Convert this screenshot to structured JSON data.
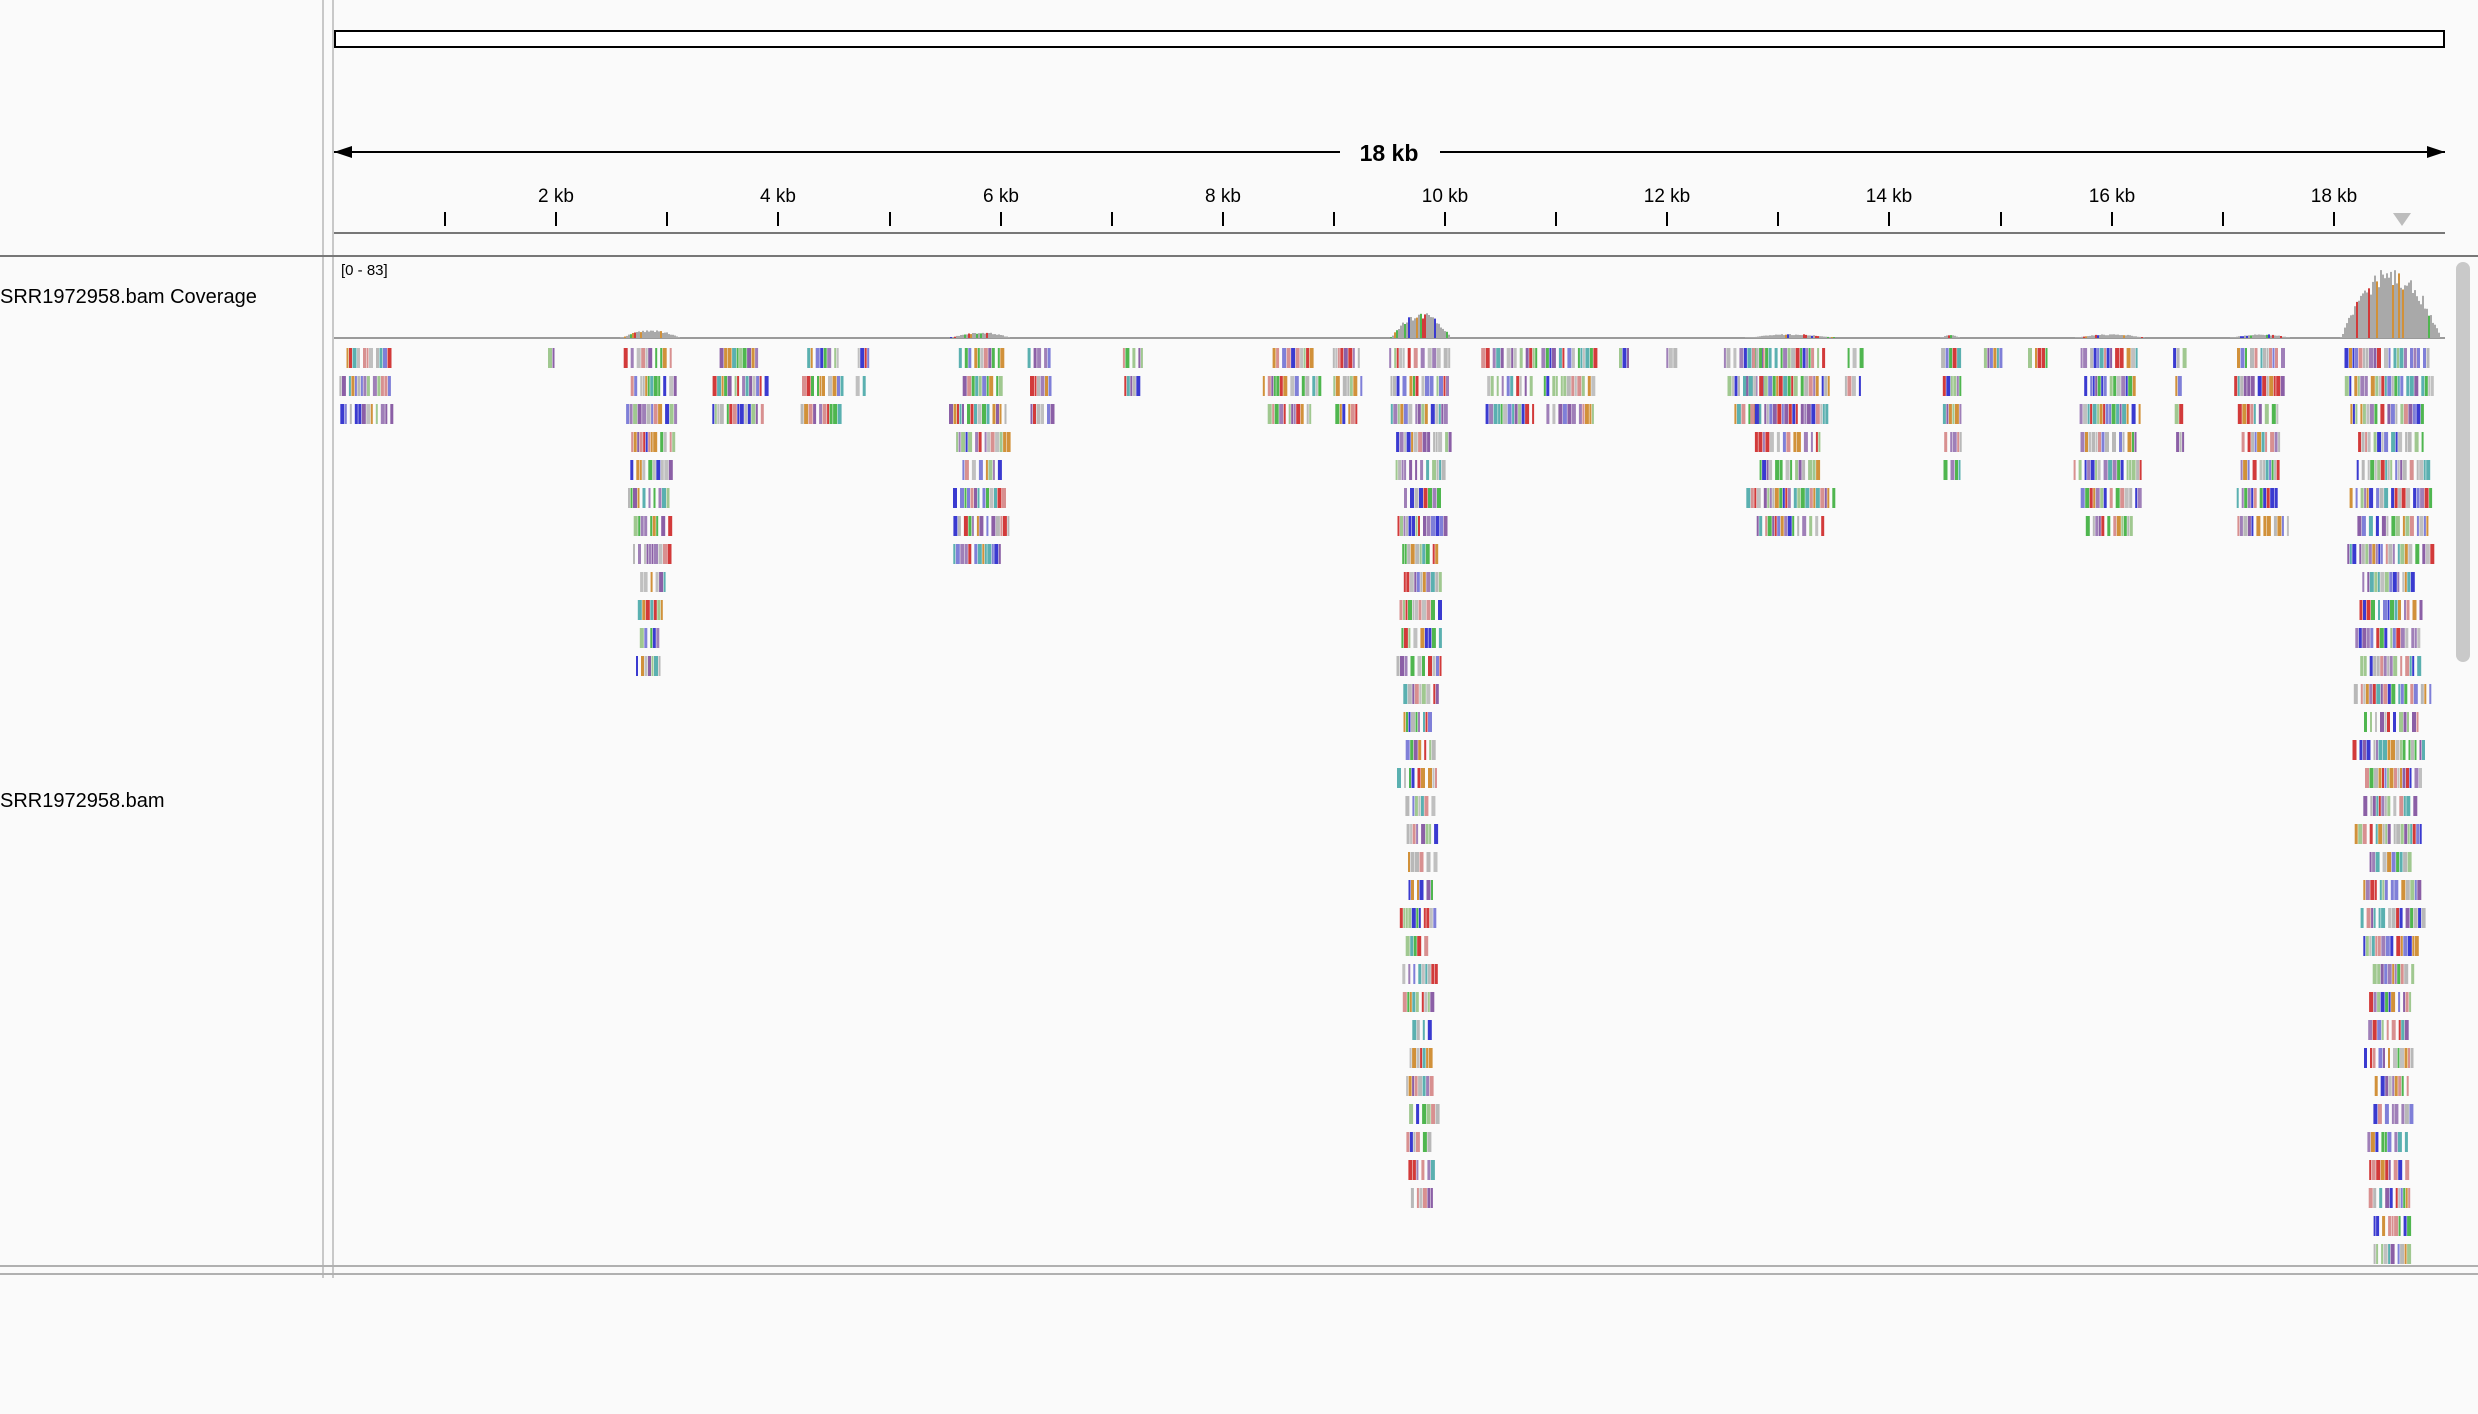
{
  "ruler": {
    "span_label": "18 kb",
    "tick_labels": [
      "2 kb",
      "4 kb",
      "6 kb",
      "8 kb",
      "10 kb",
      "12 kb",
      "14 kb",
      "16 kb",
      "18 kb"
    ],
    "tick_kb": [
      2,
      4,
      6,
      8,
      10,
      12,
      14,
      16,
      18
    ],
    "minor_tick_kb": [
      1,
      3,
      5,
      7,
      9,
      11,
      13,
      15,
      17
    ],
    "range_kb": [
      0,
      19
    ]
  },
  "tracks": {
    "coverage": {
      "name": "SRR1972958.bam Coverage",
      "data_range": "[0 - 83]"
    },
    "alignment": {
      "name": "SRR1972958.bam"
    }
  },
  "colors": {
    "base_A": "#4fb64f",
    "base_C": "#3a3ad0",
    "base_G": "#d1913a",
    "base_T": "#d23a3a",
    "read_grey": "#b7b7b7",
    "coverage_grey": "#a9a9a9"
  }
}
